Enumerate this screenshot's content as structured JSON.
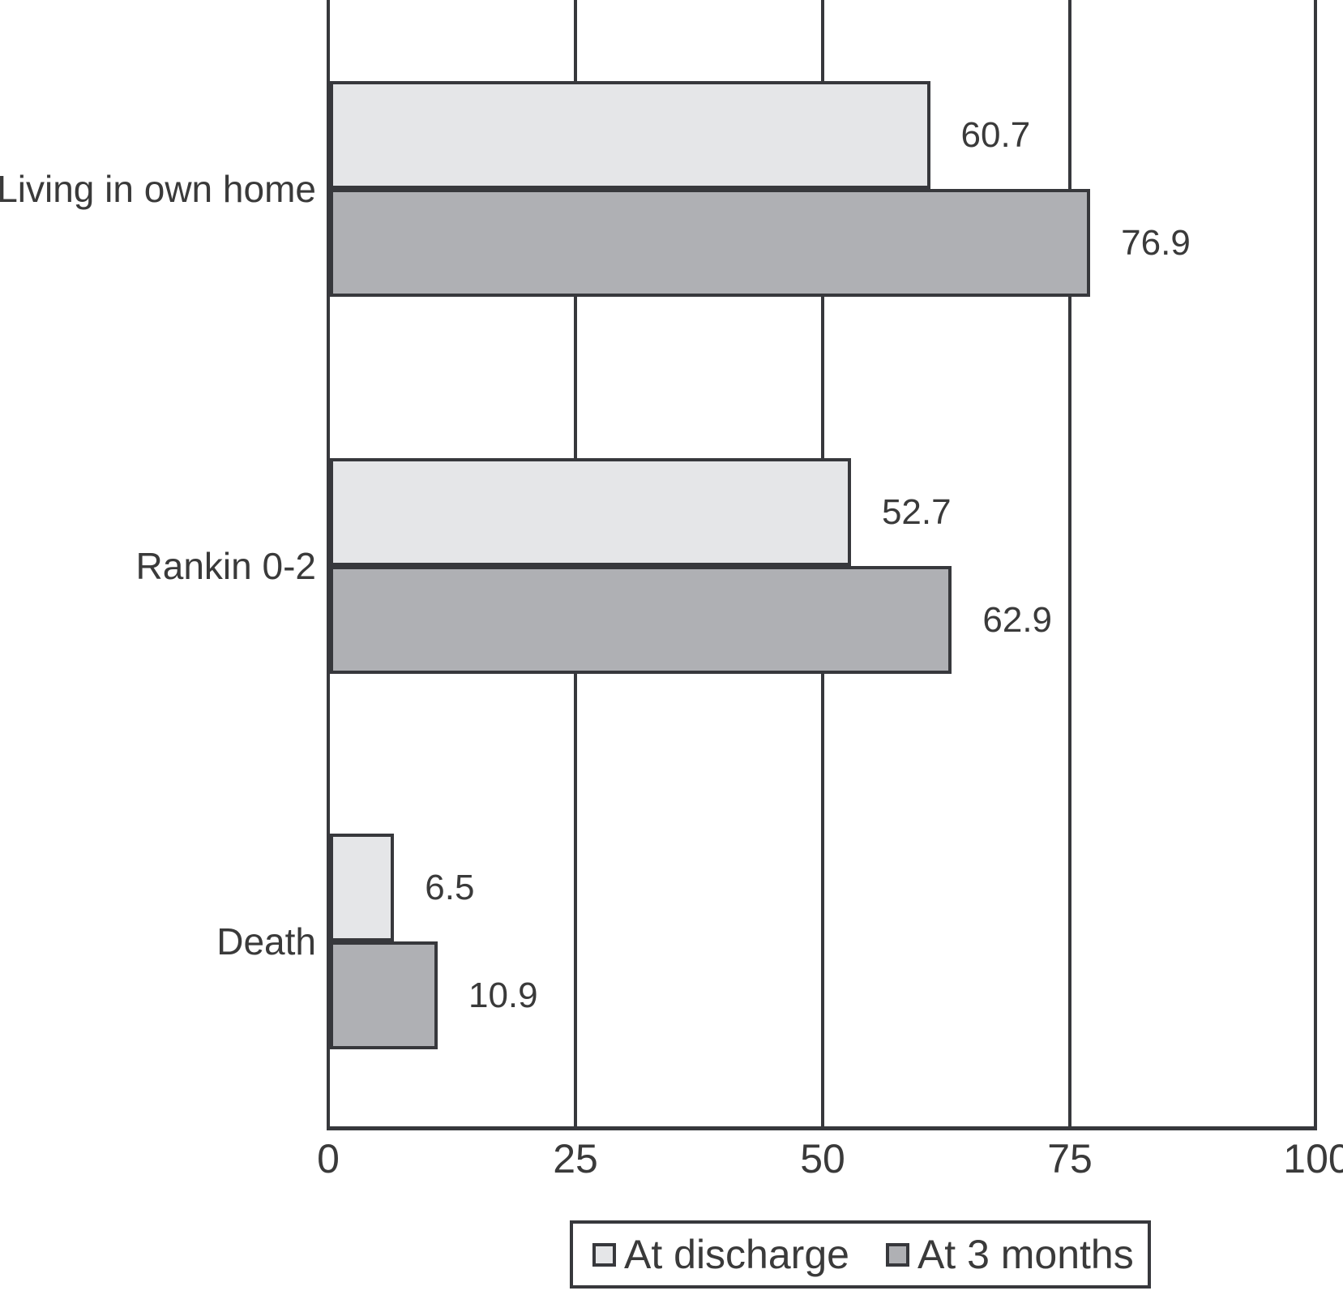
{
  "chart_data": {
    "type": "bar",
    "orientation": "horizontal",
    "title": "",
    "xlabel": "",
    "ylabel": "",
    "categories": [
      "Living in own home",
      "Rankin 0-2",
      "Death"
    ],
    "series": [
      {
        "name": "At discharge",
        "color": "#e5e6e8",
        "values": [
          60.7,
          52.7,
          6.5
        ]
      },
      {
        "name": "At 3 months",
        "color": "#afb0b4",
        "values": [
          76.9,
          62.9,
          10.9
        ]
      }
    ],
    "value_labels": [
      "60.7",
      "76.9",
      "52.7",
      "62.9",
      "6.5",
      "10.9"
    ],
    "x_ticks": [
      0,
      25,
      50,
      75,
      100
    ],
    "xlim": [
      0,
      100
    ],
    "grid": true,
    "legend_position": "bottom",
    "line_color": "#37383c",
    "text_color": "#3a3a3a"
  }
}
